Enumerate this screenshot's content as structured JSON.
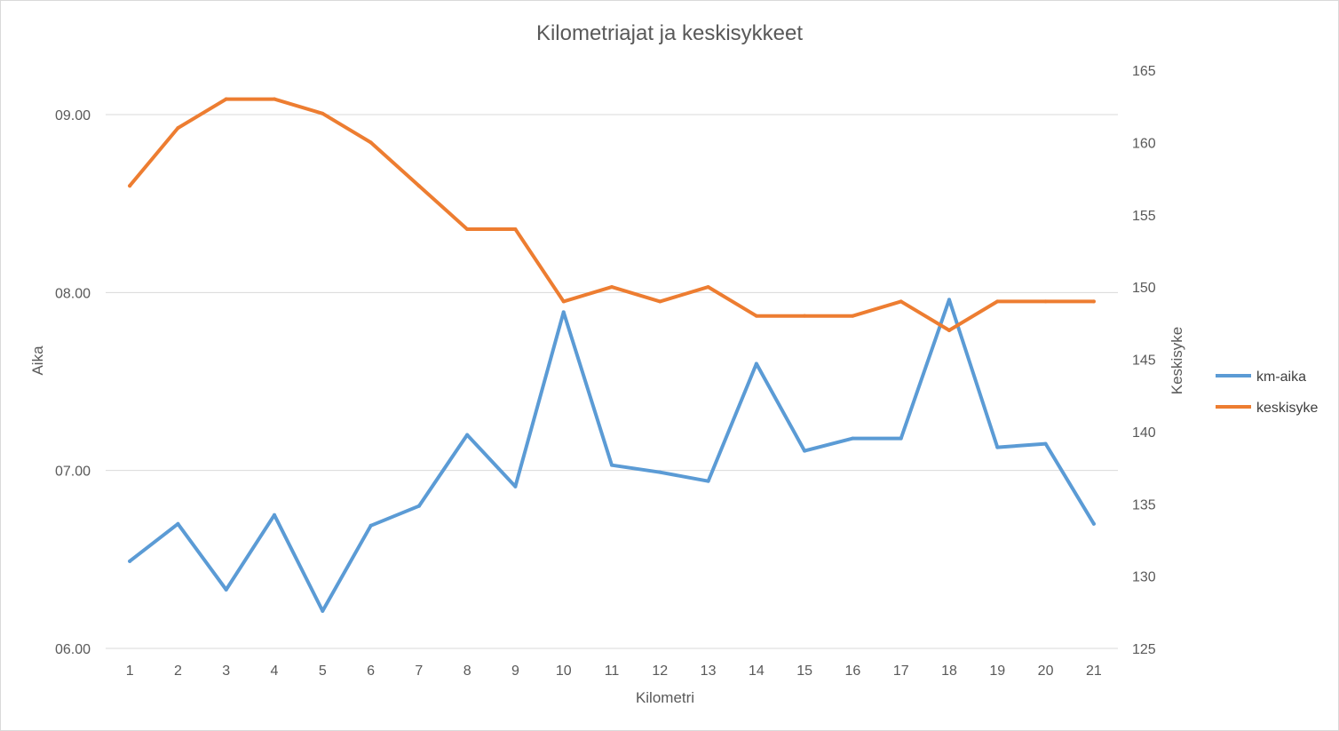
{
  "chart_data": {
    "type": "line",
    "title": "Kilometriajat ja keskisykkeet",
    "xlabel": "Kilometri",
    "ylabel": "Aika",
    "y2label": "Keskisyke",
    "categories": [
      "1",
      "2",
      "3",
      "4",
      "5",
      "6",
      "7",
      "8",
      "9",
      "10",
      "11",
      "12",
      "13",
      "14",
      "15",
      "16",
      "17",
      "18",
      "19",
      "20",
      "21"
    ],
    "y_ticks": [
      "06.00",
      "07.00",
      "08.00",
      "09.00"
    ],
    "y_range": [
      6.0,
      9.0
    ],
    "y2_ticks": [
      "125",
      "130",
      "135",
      "140",
      "145",
      "150",
      "155",
      "160",
      "165"
    ],
    "y2_range": [
      125,
      165
    ],
    "series": [
      {
        "name": "km-aika",
        "axis": "left",
        "color": "#5b9bd5",
        "values": [
          6.49,
          6.7,
          6.33,
          6.75,
          6.21,
          6.69,
          6.8,
          7.2,
          6.91,
          7.89,
          7.03,
          6.99,
          6.94,
          7.6,
          7.11,
          7.18,
          7.18,
          7.96,
          7.13,
          7.15,
          6.7
        ]
      },
      {
        "name": "keskisyke",
        "axis": "right",
        "color": "#ed7d31",
        "values": [
          157,
          161,
          163,
          163,
          162,
          160,
          157,
          154,
          154,
          149,
          150,
          149,
          150,
          148,
          148,
          148,
          149,
          147,
          149,
          149,
          149
        ]
      }
    ],
    "grid": true,
    "legend": "right"
  }
}
